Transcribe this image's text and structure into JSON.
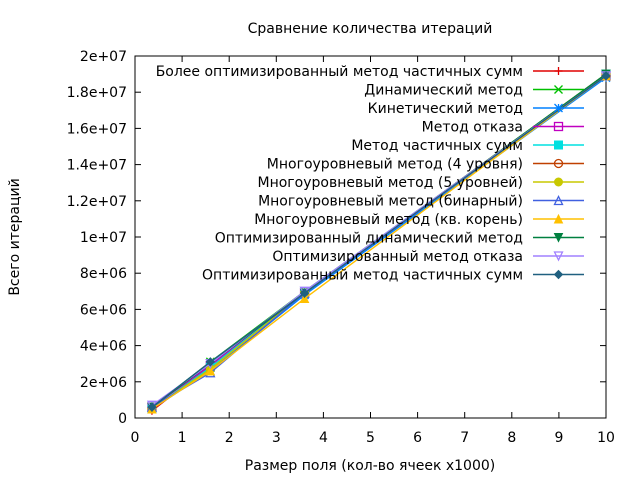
{
  "chart_data": {
    "type": "line",
    "title": "Сравнение количества итераций",
    "xlabel": "Размер поля (кол-во ячеек x1000)",
    "ylabel": "Всего итераций",
    "xlim": [
      0,
      10
    ],
    "ylim": [
      0,
      20000000
    ],
    "x_ticks": [
      0,
      1,
      2,
      3,
      4,
      5,
      6,
      7,
      8,
      9,
      10
    ],
    "x_tick_labels": [
      "0",
      "1",
      "2",
      "3",
      "4",
      "5",
      "6",
      "7",
      "8",
      "9",
      "10"
    ],
    "y_ticks": [
      0,
      2000000,
      4000000,
      6000000,
      8000000,
      10000000,
      12000000,
      14000000,
      16000000,
      18000000,
      20000000
    ],
    "y_tick_labels": [
      "0",
      "2e+06",
      "4e+06",
      "6e+06",
      "8e+06",
      "1e+07",
      "1.2e+07",
      "1.4e+07",
      "1.6e+07",
      "1.8e+07",
      "2e+07"
    ],
    "grid": false,
    "legend_position": "top-right",
    "x": [
      0.36,
      1.6,
      3.6,
      10
    ],
    "series": [
      {
        "name": "Более оптимизированный метод частичных сумм",
        "color": "#e00000",
        "marker": "plus",
        "values": [
          400000,
          2900000,
          6900000,
          19000000
        ]
      },
      {
        "name": "Динамический метод",
        "color": "#00c000",
        "marker": "cross",
        "values": [
          600000,
          3100000,
          7000000,
          18900000
        ]
      },
      {
        "name": "Кинетический метод",
        "color": "#0080ff",
        "marker": "star",
        "values": [
          500000,
          2600000,
          6800000,
          18800000
        ]
      },
      {
        "name": "Метод отказа",
        "color": "#c000c0",
        "marker": "square-open",
        "values": [
          600000,
          2900000,
          6900000,
          18900000
        ]
      },
      {
        "name": "Метод частичных сумм",
        "color": "#00e0e0",
        "marker": "square-filled",
        "values": [
          500000,
          2800000,
          6900000,
          19000000
        ]
      },
      {
        "name": "Многоуровневый метод (4 уровня)",
        "color": "#c04000",
        "marker": "circle-open",
        "values": [
          500000,
          2700000,
          6900000,
          18900000
        ]
      },
      {
        "name": "Многоуровневый метод (5 уровней)",
        "color": "#c8c800",
        "marker": "circle-filled",
        "values": [
          500000,
          2700000,
          6900000,
          19000000
        ]
      },
      {
        "name": "Многоуровневый метод (бинарный)",
        "color": "#4060e0",
        "marker": "triangle-open",
        "values": [
          600000,
          2500000,
          6900000,
          18900000
        ]
      },
      {
        "name": "Многоуровневый метод (кв. корень)",
        "color": "#ffc000",
        "marker": "triangle-filled",
        "values": [
          500000,
          2600000,
          6600000,
          18900000
        ]
      },
      {
        "name": "Оптимизированный динамический метод",
        "color": "#008040",
        "marker": "triangle-down-filled",
        "values": [
          600000,
          3000000,
          6900000,
          19000000
        ]
      },
      {
        "name": "Оптимизированный метод отказа",
        "color": "#a080ff",
        "marker": "triangle-down-open",
        "values": [
          700000,
          3000000,
          7000000,
          18900000
        ]
      },
      {
        "name": "Оптимизированный метод частичных сумм",
        "color": "#206080",
        "marker": "diamond-filled",
        "values": [
          600000,
          3100000,
          6900000,
          18900000
        ]
      }
    ]
  }
}
